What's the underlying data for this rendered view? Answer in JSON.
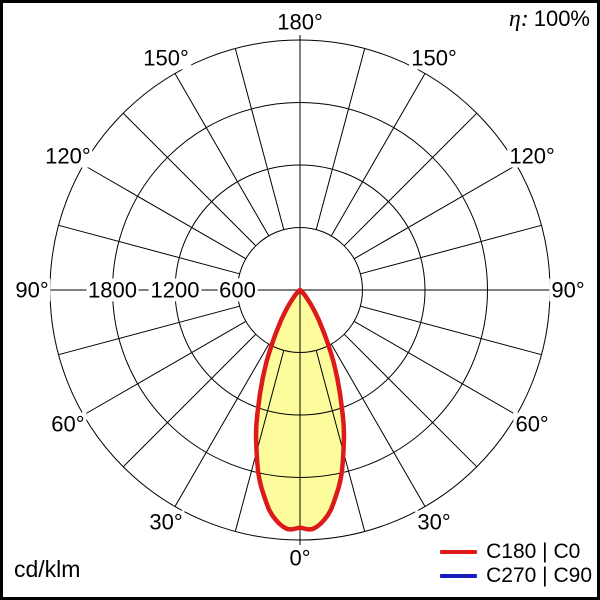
{
  "header": {
    "eta_symbol": "η:",
    "eta_value": "100%"
  },
  "footer": {
    "unit": "cd/klm"
  },
  "legend": [
    {
      "label": "C180 | C0",
      "color": "#dd1a1a"
    },
    {
      "label": "C270 | C90",
      "color": "#1a1ac4"
    }
  ],
  "chart_data": {
    "type": "polar_intensity_distribution",
    "unit": "cd/klm",
    "efficiency_label": "η: 100%",
    "gamma_axis": {
      "labels": [
        "0°",
        "30°",
        "60°",
        "90°",
        "120°",
        "150°",
        "180°"
      ],
      "label_step_deg": 30,
      "grid_step_deg": 15,
      "zero_direction": "down"
    },
    "radial_axis": {
      "ring_values": [
        600,
        1200,
        1800,
        2400
      ],
      "labeled_rings": [
        "1800",
        "1200",
        "600"
      ],
      "max": 2400
    },
    "series": [
      {
        "name": "C180 | C0",
        "color": "#dd1a1a",
        "fill": "#fcfc9d",
        "symmetric": true,
        "gamma_deg": [
          0,
          2,
          4,
          7.5,
          10,
          12.5,
          15,
          17.5,
          20,
          22.5,
          25,
          27.5,
          30,
          32.5,
          35,
          37.5,
          40,
          45,
          50,
          55,
          60,
          65,
          90
        ],
        "cd_per_klm": [
          2280,
          2300,
          2280,
          2160,
          2000,
          1830,
          1610,
          1400,
          1160,
          950,
          760,
          580,
          430,
          320,
          230,
          160,
          105,
          45,
          18,
          7,
          2,
          0,
          0
        ]
      },
      {
        "name": "C270 | C90",
        "color": "#1a1ac4",
        "fill": "none",
        "symmetric": true,
        "gamma_deg": [
          0,
          2,
          4,
          7.5,
          10,
          12.5,
          15,
          17.5,
          20,
          22.5,
          25,
          27.5,
          30,
          32.5,
          35,
          37.5,
          40,
          45,
          50,
          55,
          60,
          65,
          90
        ],
        "cd_per_klm": [
          2280,
          2300,
          2280,
          2160,
          2000,
          1830,
          1610,
          1400,
          1160,
          950,
          760,
          580,
          430,
          320,
          230,
          160,
          105,
          45,
          18,
          7,
          2,
          0,
          0
        ]
      }
    ]
  }
}
